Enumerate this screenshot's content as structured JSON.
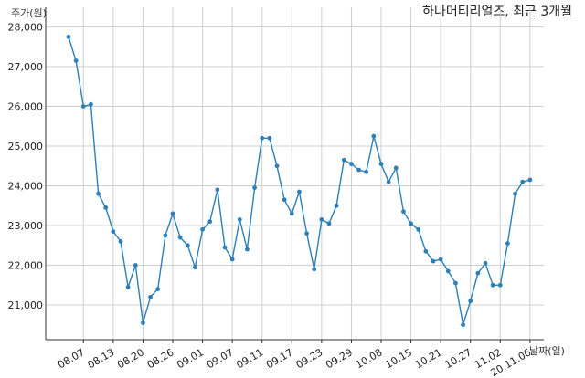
{
  "chart_data": {
    "type": "line",
    "title": "하나머티리얼즈, 최근 3개월",
    "ylabel": "주가(원)",
    "xlabel": "날짜(일)",
    "ylim": [
      20000,
      28000
    ],
    "yticks": [
      21000,
      22000,
      23000,
      24000,
      25000,
      26000,
      27000,
      28000
    ],
    "ytick_labels": [
      "21,000",
      "22,000",
      "23,000",
      "24,000",
      "25,000",
      "26,000",
      "27,000",
      "28,000"
    ],
    "xtick_labels": [
      "08.07",
      "08.13",
      "08.20",
      "08.26",
      "09.01",
      "09.07",
      "09.11",
      "09.17",
      "09.23",
      "09.29",
      "10.08",
      "10.15",
      "10.21",
      "10.27",
      "11.02",
      "20.11.06"
    ],
    "xtick_index": [
      2,
      6,
      10,
      14,
      18,
      22,
      26,
      30,
      34,
      38,
      42,
      46,
      50,
      54,
      58,
      62
    ],
    "grid": true,
    "line_color": "#2c7fb8",
    "series": [
      {
        "values": [
          27750,
          27150,
          26000,
          26050,
          23800,
          23450,
          22850,
          22600,
          21450,
          22000,
          20550,
          21200,
          21400,
          22750,
          23300,
          22700,
          22500,
          21950,
          22900,
          23100,
          23900,
          22450,
          22150,
          23150,
          22400,
          23950,
          25200,
          25200,
          24500,
          23650,
          23300,
          23850,
          22800,
          21900,
          23150,
          23050,
          23500,
          24650,
          24550,
          24400,
          24350,
          25250,
          24550,
          24100,
          24450,
          23350,
          23050,
          22900,
          22350,
          22100,
          22150,
          21850,
          21550,
          20500,
          21100,
          21800,
          22050,
          21500,
          21500,
          22550,
          23800,
          24100,
          24150
        ]
      }
    ]
  }
}
